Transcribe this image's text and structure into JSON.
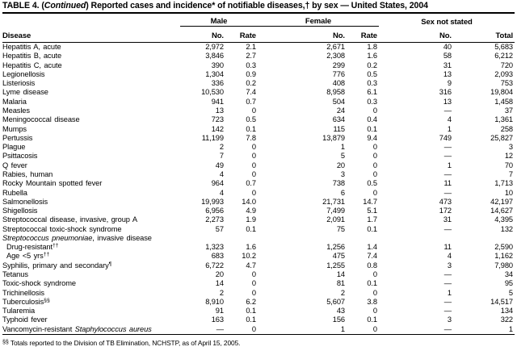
{
  "title": {
    "prefix": "TABLE 4. (",
    "continued": "Continued",
    "suffix": ") Reported cases and incidence* of notifiable diseases,† by sex — United States, 2004"
  },
  "header": {
    "disease_label": "Disease",
    "groups": [
      {
        "label": "Male"
      },
      {
        "label": "Female"
      },
      {
        "label": "Sex not stated"
      }
    ],
    "columns": [
      "No.",
      "Rate",
      "No.",
      "Rate",
      "No.",
      "Total"
    ]
  },
  "table": {
    "rows": [
      {
        "pre": "Hepatitis A, acute",
        "indent": 0,
        "cells": [
          "2,972",
          "2.1",
          "2,671",
          "1.8",
          "40",
          "5,683"
        ]
      },
      {
        "pre": "Hepatitis B, acute",
        "indent": 0,
        "cells": [
          "3,846",
          "2.7",
          "2,308",
          "1.6",
          "58",
          "6,212"
        ]
      },
      {
        "pre": "Hepatitis C, acute",
        "indent": 0,
        "cells": [
          "390",
          "0.3",
          "299",
          "0.2",
          "31",
          "720"
        ]
      },
      {
        "pre": "Legionellosis",
        "indent": 0,
        "cells": [
          "1,304",
          "0.9",
          "776",
          "0.5",
          "13",
          "2,093"
        ]
      },
      {
        "pre": "Listeriosis",
        "indent": 0,
        "cells": [
          "336",
          "0.2",
          "408",
          "0.3",
          "9",
          "753"
        ]
      },
      {
        "pre": "Lyme disease",
        "indent": 0,
        "cells": [
          "10,530",
          "7.4",
          "8,958",
          "6.1",
          "316",
          "19,804"
        ]
      },
      {
        "pre": "Malaria",
        "indent": 0,
        "cells": [
          "941",
          "0.7",
          "504",
          "0.3",
          "13",
          "1,458"
        ]
      },
      {
        "pre": "Measles",
        "indent": 0,
        "cells": [
          "13",
          "0",
          "24",
          "0",
          "—",
          "37"
        ]
      },
      {
        "pre": "Meningococcal disease",
        "indent": 0,
        "cells": [
          "723",
          "0.5",
          "634",
          "0.4",
          "4",
          "1,361"
        ]
      },
      {
        "pre": "Mumps",
        "indent": 0,
        "cells": [
          "142",
          "0.1",
          "115",
          "0.1",
          "1",
          "258"
        ]
      },
      {
        "pre": "Pertussis",
        "indent": 0,
        "cells": [
          "11,199",
          "7.8",
          "13,879",
          "9.4",
          "749",
          "25,827"
        ]
      },
      {
        "pre": "Plague",
        "indent": 0,
        "cells": [
          "2",
          "0",
          "1",
          "0",
          "—",
          "3"
        ]
      },
      {
        "pre": "Psittacosis",
        "indent": 0,
        "cells": [
          "7",
          "0",
          "5",
          "0",
          "—",
          "12"
        ]
      },
      {
        "pre": "Q fever",
        "indent": 0,
        "cells": [
          "49",
          "0",
          "20",
          "0",
          "1",
          "70"
        ]
      },
      {
        "pre": "Rabies, human",
        "indent": 0,
        "cells": [
          "4",
          "0",
          "3",
          "0",
          "—",
          "7"
        ]
      },
      {
        "pre": "Rocky Mountain spotted fever",
        "indent": 0,
        "cells": [
          "964",
          "0.7",
          "738",
          "0.5",
          "11",
          "1,713"
        ]
      },
      {
        "pre": "Rubella",
        "indent": 0,
        "cells": [
          "4",
          "0",
          "6",
          "0",
          "—",
          "10"
        ]
      },
      {
        "pre": "Salmonellosis",
        "indent": 0,
        "cells": [
          "19,993",
          "14.0",
          "21,731",
          "14.7",
          "473",
          "42,197"
        ]
      },
      {
        "pre": "Shigellosis",
        "indent": 0,
        "cells": [
          "6,956",
          "4.9",
          "7,499",
          "5.1",
          "172",
          "14,627"
        ]
      },
      {
        "pre": "Streptococcal disease, invasive, group A",
        "indent": 0,
        "cells": [
          "2,273",
          "1.9",
          "2,091",
          "1.7",
          "31",
          "4,395"
        ]
      },
      {
        "pre": "Streptococcal toxic-shock syndrome",
        "indent": 0,
        "cells": [
          "57",
          "0.1",
          "75",
          "0.1",
          "—",
          "132"
        ]
      },
      {
        "it": "Streptococcus pneumoniae",
        "post": ", invasive disease",
        "indent": 0,
        "cells": [
          "",
          "",
          "",
          "",
          "",
          ""
        ]
      },
      {
        "pre": "Drug-resistant",
        "sup": "††",
        "indent": 1,
        "cells": [
          "1,323",
          "1.6",
          "1,256",
          "1.4",
          "11",
          "2,590"
        ]
      },
      {
        "pre": "Age <5 yrs",
        "sup": "††",
        "indent": 1,
        "cells": [
          "683",
          "10.2",
          "475",
          "7.4",
          "4",
          "1,162"
        ]
      },
      {
        "pre": "Syphilis, primary and secondary",
        "sup": "¶",
        "indent": 0,
        "cells": [
          "6,722",
          "4.7",
          "1,255",
          "0.8",
          "3",
          "7,980"
        ]
      },
      {
        "pre": "Tetanus",
        "indent": 0,
        "cells": [
          "20",
          "0",
          "14",
          "0",
          "—",
          "34"
        ]
      },
      {
        "pre": "Toxic-shock syndrome",
        "indent": 0,
        "cells": [
          "14",
          "0",
          "81",
          "0.1",
          "—",
          "95"
        ]
      },
      {
        "pre": "Trichinellosis",
        "indent": 0,
        "cells": [
          "2",
          "0",
          "2",
          "0",
          "1",
          "5"
        ]
      },
      {
        "pre": "Tuberculosis",
        "sup": "§§",
        "indent": 0,
        "cells": [
          "8,910",
          "6.2",
          "5,607",
          "3.8",
          "—",
          "14,517"
        ]
      },
      {
        "pre": "Tularemia",
        "indent": 0,
        "cells": [
          "91",
          "0.1",
          "43",
          "0",
          "—",
          "134"
        ]
      },
      {
        "pre": "Typhoid fever",
        "indent": 0,
        "cells": [
          "163",
          "0.1",
          "156",
          "0.1",
          "3",
          "322"
        ]
      },
      {
        "pre": "Vancomycin-resistant ",
        "it": "Staphylococcus aureus",
        "indent": 0,
        "cells": [
          "—",
          "0",
          "1",
          "0",
          "—",
          "1"
        ]
      }
    ]
  },
  "footnote": {
    "marker": "§§",
    "text": " Totals reported to the Division of TB Elimination, NCHSTP, as of April 15, 2005."
  }
}
